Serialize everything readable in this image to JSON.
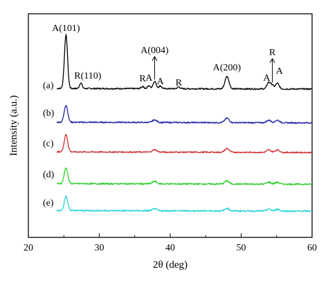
{
  "chart_data": {
    "type": "line",
    "xlabel": "2θ (deg)",
    "ylabel": "Intensity (a.u.)",
    "xlim": [
      20,
      60
    ],
    "xticks": [
      20,
      30,
      40,
      50,
      60
    ],
    "yticks_shown": false,
    "series": [
      {
        "name": "(a)",
        "color": "#000000",
        "baseline": 1.0,
        "noise": 0.012,
        "peaks": [
          {
            "x": 25.3,
            "h": 0.95,
            "w": 0.22
          },
          {
            "x": 27.4,
            "h": 0.1,
            "w": 0.18
          },
          {
            "x": 36.1,
            "h": 0.04,
            "w": 0.2
          },
          {
            "x": 37.0,
            "h": 0.05,
            "w": 0.2
          },
          {
            "x": 37.8,
            "h": 0.13,
            "w": 0.22
          },
          {
            "x": 38.6,
            "h": 0.05,
            "w": 0.2
          },
          {
            "x": 41.2,
            "h": 0.03,
            "w": 0.2
          },
          {
            "x": 48.0,
            "h": 0.22,
            "w": 0.28
          },
          {
            "x": 53.9,
            "h": 0.12,
            "w": 0.25
          },
          {
            "x": 54.4,
            "h": 0.06,
            "w": 0.2
          },
          {
            "x": 55.1,
            "h": 0.1,
            "w": 0.25
          }
        ]
      },
      {
        "name": "(b)",
        "color": "#1f1fa8",
        "baseline": 0.0,
        "noise": 0.01,
        "peaks": [
          {
            "x": 25.3,
            "h": 0.27,
            "w": 0.25
          },
          {
            "x": 37.8,
            "h": 0.04,
            "w": 0.3
          },
          {
            "x": 48.0,
            "h": 0.07,
            "w": 0.3
          },
          {
            "x": 53.9,
            "h": 0.04,
            "w": 0.3
          },
          {
            "x": 55.1,
            "h": 0.04,
            "w": 0.3
          }
        ]
      },
      {
        "name": "(c)",
        "color": "#d03030",
        "baseline": 0.0,
        "noise": 0.01,
        "peaks": [
          {
            "x": 25.3,
            "h": 0.27,
            "w": 0.25
          },
          {
            "x": 37.8,
            "h": 0.04,
            "w": 0.3
          },
          {
            "x": 48.0,
            "h": 0.06,
            "w": 0.3
          },
          {
            "x": 53.9,
            "h": 0.04,
            "w": 0.3
          },
          {
            "x": 55.1,
            "h": 0.04,
            "w": 0.3
          }
        ]
      },
      {
        "name": "(d)",
        "color": "#2ed12e",
        "baseline": 0.0,
        "noise": 0.012,
        "peaks": [
          {
            "x": 25.3,
            "h": 0.25,
            "w": 0.25
          },
          {
            "x": 37.8,
            "h": 0.04,
            "w": 0.3
          },
          {
            "x": 48.0,
            "h": 0.05,
            "w": 0.3
          },
          {
            "x": 53.9,
            "h": 0.03,
            "w": 0.3
          },
          {
            "x": 55.1,
            "h": 0.03,
            "w": 0.3
          }
        ]
      },
      {
        "name": "(e)",
        "color": "#22d3d6",
        "baseline": 0.0,
        "noise": 0.012,
        "peaks": [
          {
            "x": 25.3,
            "h": 0.22,
            "w": 0.25
          },
          {
            "x": 37.8,
            "h": 0.03,
            "w": 0.3
          },
          {
            "x": 48.0,
            "h": 0.04,
            "w": 0.3
          },
          {
            "x": 53.9,
            "h": 0.03,
            "w": 0.3
          },
          {
            "x": 55.1,
            "h": 0.03,
            "w": 0.3
          }
        ]
      }
    ],
    "annotations": [
      {
        "text": "A(101)",
        "x": 25.3
      },
      {
        "text": "R(110)",
        "x": 27.4
      },
      {
        "text": "R",
        "x": 36.1
      },
      {
        "text": "A",
        "x": 37.0
      },
      {
        "text": "A(004)",
        "x": 37.8
      },
      {
        "text": "A",
        "x": 38.6
      },
      {
        "text": "R",
        "x": 41.2
      },
      {
        "text": "A(200)",
        "x": 48.0
      },
      {
        "text": "A",
        "x": 53.9
      },
      {
        "text": "R",
        "x": 54.4
      },
      {
        "text": "A",
        "x": 55.1
      }
    ]
  }
}
